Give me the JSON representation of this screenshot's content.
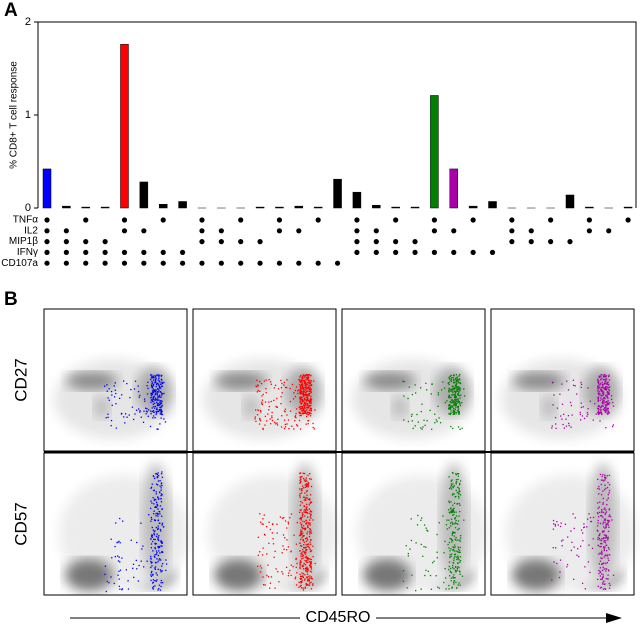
{
  "chart_data": [
    {
      "type": "bar",
      "panel_label": "A",
      "ylabel": "% CD8+ T cell response",
      "values": [
        0.42,
        0.02,
        0.01,
        0.01,
        1.76,
        0.28,
        0.04,
        0.07,
        0,
        0,
        0,
        0.01,
        0.01,
        0.02,
        0.01,
        0.31,
        0.17,
        0.03,
        0.01,
        0.01,
        1.21,
        0.42,
        0.02,
        0.07,
        0,
        0,
        0,
        0.14,
        0.01,
        0,
        0.01
      ],
      "colors": [
        "#0000ff",
        "#000000",
        "#000000",
        "#000000",
        "#ff0000",
        "#000000",
        "#000000",
        "#000000",
        "#000000",
        "#000000",
        "#000000",
        "#000000",
        "#000000",
        "#000000",
        "#000000",
        "#000000",
        "#000000",
        "#000000",
        "#000000",
        "#000000",
        "#008000",
        "#aa00aa",
        "#000000",
        "#000000",
        "#000000",
        "#000000",
        "#000000",
        "#000000",
        "#000000",
        "#000000",
        "#000000"
      ],
      "ylim": [
        0,
        2
      ],
      "yticks": [
        0,
        1,
        2
      ],
      "markers": [
        {
          "name": "TNFα",
          "present": [
            1,
            0,
            1,
            0,
            1,
            0,
            1,
            0,
            1,
            0,
            1,
            0,
            1,
            0,
            1,
            0,
            1,
            0,
            1,
            0,
            1,
            0,
            1,
            0,
            1,
            0,
            1,
            0,
            1,
            0,
            1
          ]
        },
        {
          "name": "IL2",
          "present": [
            1,
            1,
            0,
            0,
            1,
            1,
            0,
            0,
            1,
            1,
            0,
            0,
            1,
            1,
            0,
            0,
            1,
            1,
            0,
            0,
            1,
            1,
            0,
            0,
            1,
            1,
            0,
            0,
            1,
            1,
            0
          ]
        },
        {
          "name": "MIP1β",
          "present": [
            1,
            1,
            1,
            1,
            0,
            0,
            0,
            0,
            1,
            1,
            1,
            1,
            0,
            0,
            0,
            0,
            1,
            1,
            1,
            1,
            0,
            0,
            0,
            0,
            1,
            1,
            1,
            1,
            0,
            0,
            0
          ]
        },
        {
          "name": "IFNγ",
          "present": [
            1,
            1,
            1,
            1,
            1,
            1,
            1,
            1,
            0,
            0,
            0,
            0,
            0,
            0,
            0,
            0,
            1,
            1,
            1,
            1,
            1,
            1,
            1,
            1,
            0,
            0,
            0,
            0,
            0,
            0,
            0
          ]
        },
        {
          "name": "CD107a",
          "present": [
            1,
            1,
            1,
            1,
            1,
            1,
            1,
            1,
            1,
            1,
            1,
            1,
            1,
            1,
            1,
            1,
            0,
            0,
            0,
            0,
            0,
            0,
            0,
            0,
            0,
            0,
            0,
            0,
            0,
            0,
            0
          ]
        }
      ]
    },
    {
      "type": "flow",
      "panel_label": "B",
      "row_labels": [
        "CD27",
        "CD57"
      ],
      "xlabel": "CD45RO",
      "population_colors": [
        "#0000ff",
        "#ff0000",
        "#008000",
        "#aa00aa"
      ]
    }
  ]
}
